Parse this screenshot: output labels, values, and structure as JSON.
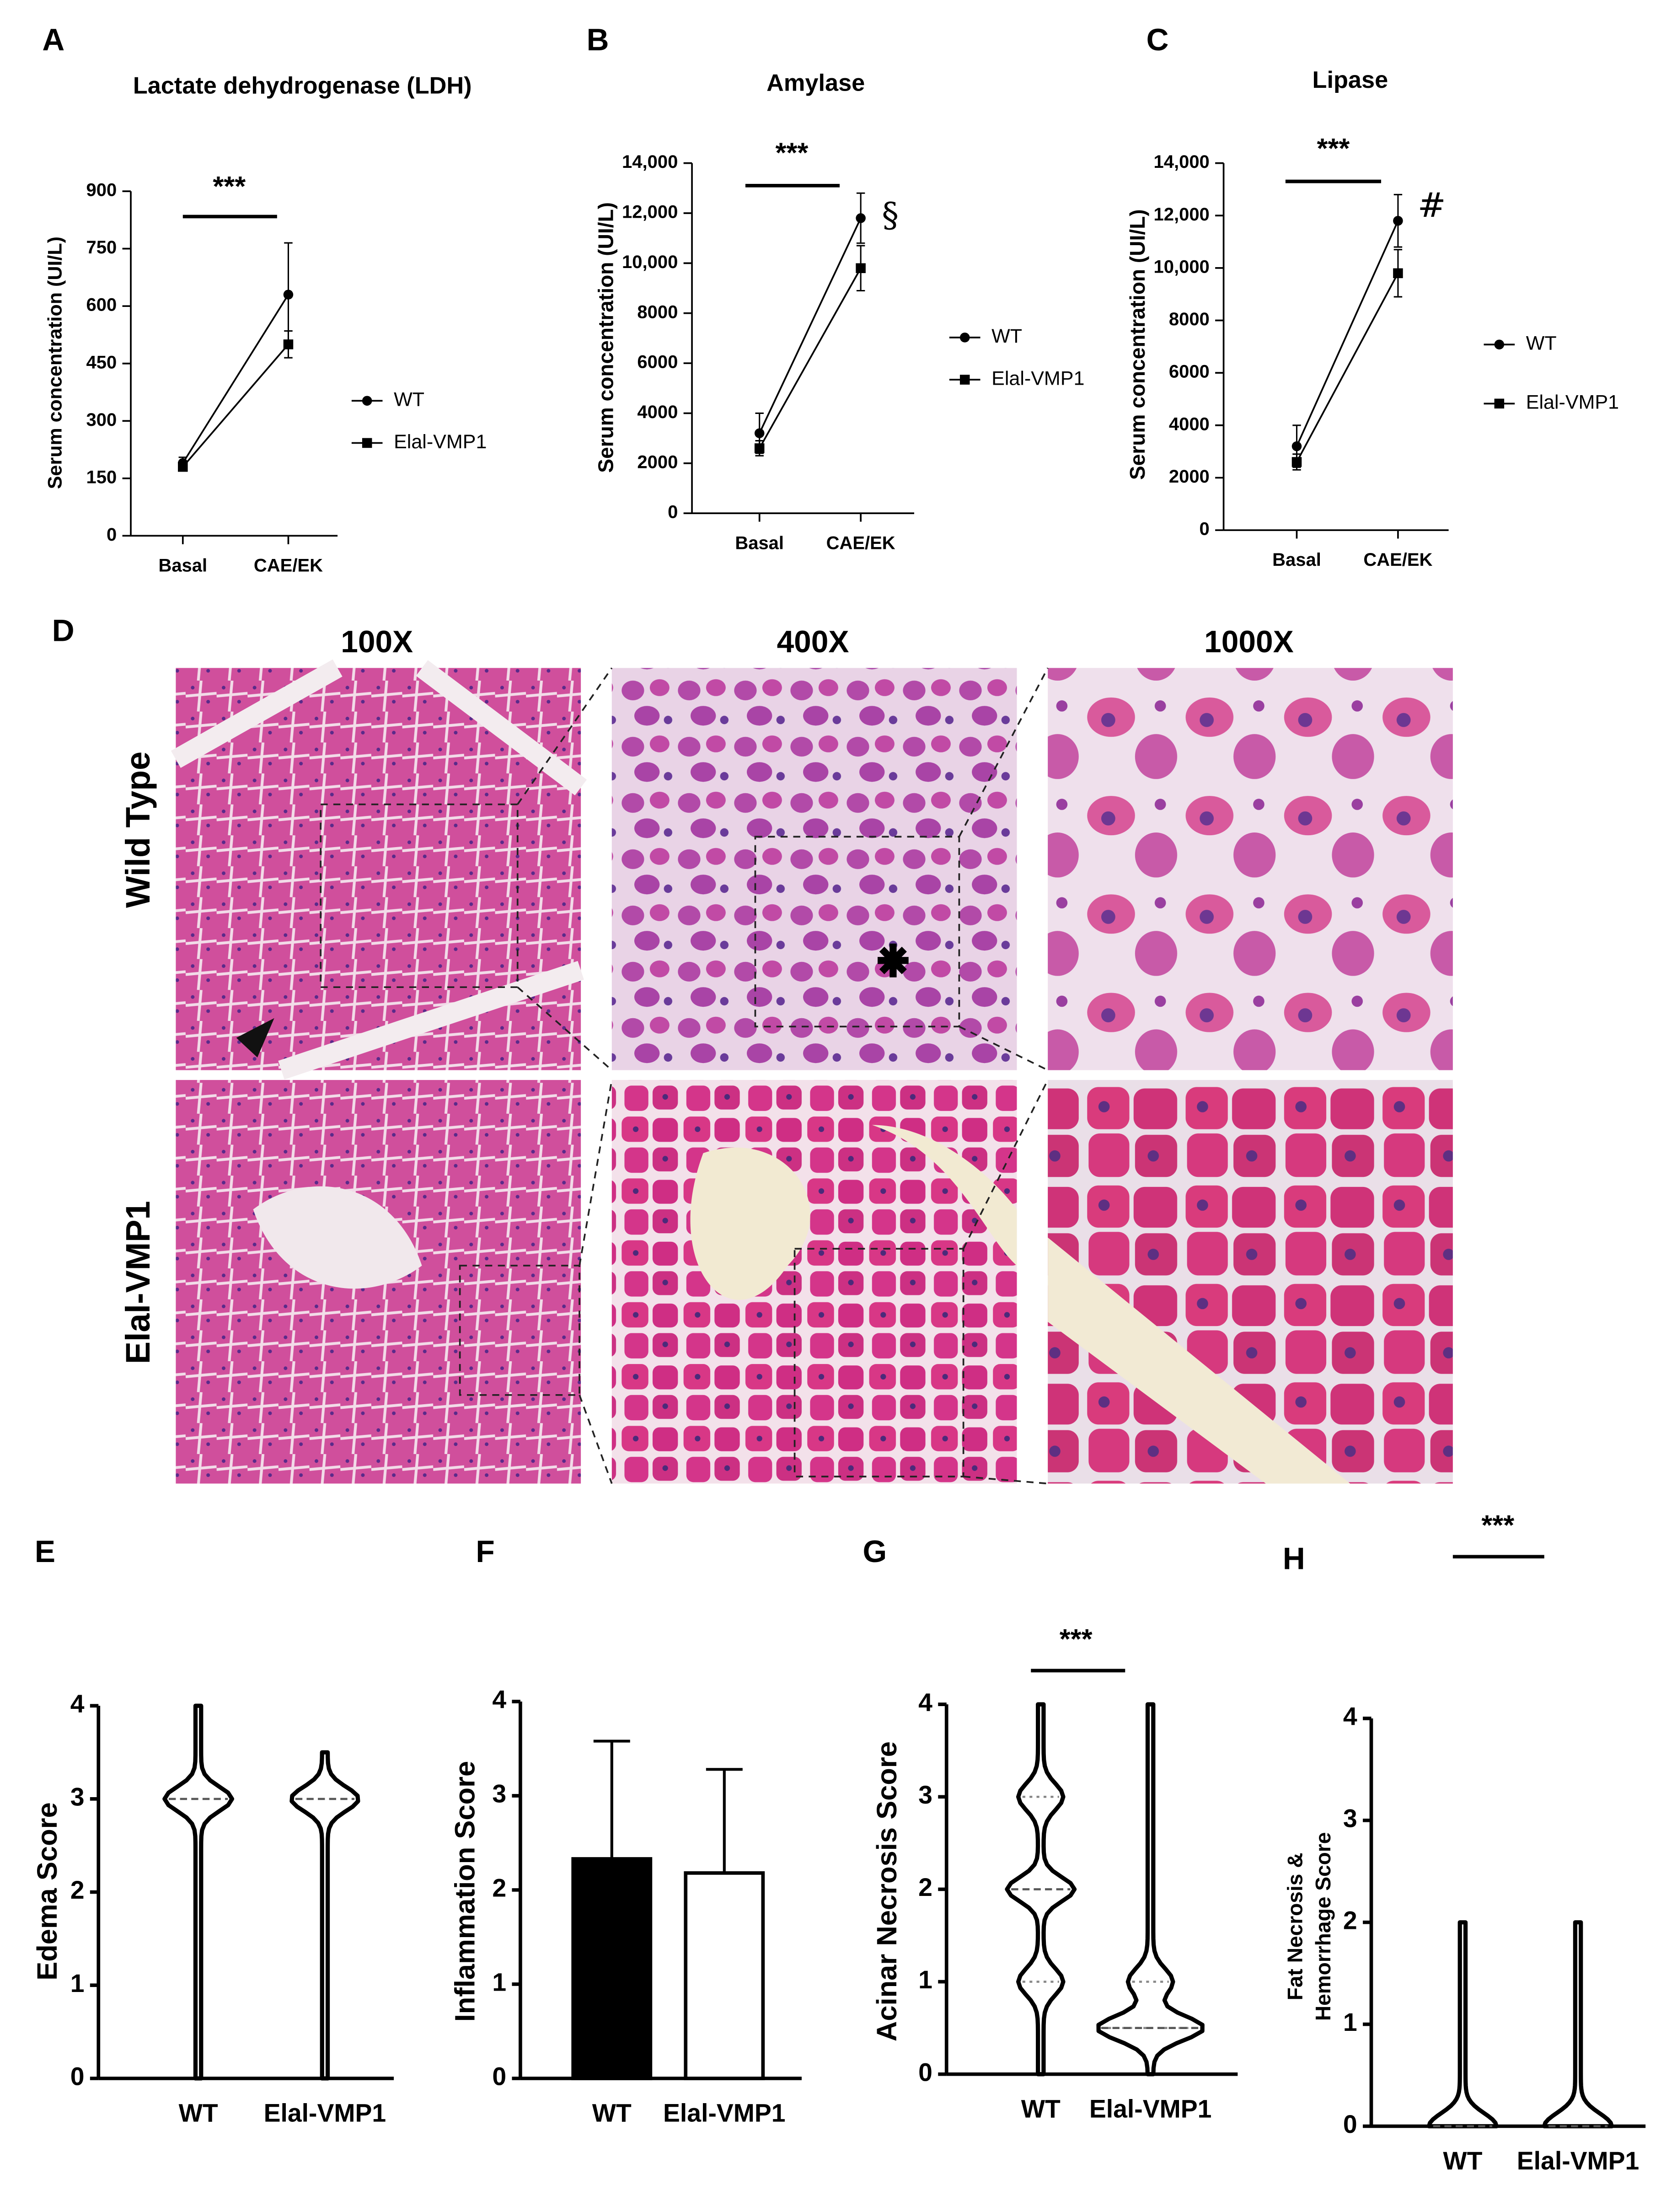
{
  "chart_data": [
    {
      "type": "line",
      "letter": "A",
      "title": "Lactate dehydrogenase (LDH)",
      "ylabel": "Serum concentration (UI/L)",
      "categories": [
        "Basal",
        "CAE/EK"
      ],
      "series": [
        {
          "name": "WT",
          "marker": "circle",
          "color": "#000000",
          "values": [
            190,
            630
          ],
          "errors": [
            15,
            135
          ]
        },
        {
          "name": "Elal-VMP1",
          "marker": "square",
          "color": "#000000",
          "values": [
            180,
            500
          ],
          "errors": [
            10,
            35
          ]
        }
      ],
      "ylim": [
        0,
        900
      ],
      "yticks": [
        0,
        150,
        300,
        450,
        600,
        750,
        900
      ],
      "annotations": [
        "***"
      ]
    },
    {
      "type": "line",
      "letter": "B",
      "title": "Amylase",
      "ylabel": "Serum concentration (UI/L)",
      "categories": [
        "Basal",
        "CAE/EK"
      ],
      "series": [
        {
          "name": "WT",
          "marker": "circle",
          "color": "#000000",
          "values": [
            3200,
            11800
          ],
          "errors": [
            800,
            1000
          ]
        },
        {
          "name": "Elal-VMP1",
          "marker": "square",
          "color": "#000000",
          "values": [
            2600,
            9800
          ],
          "errors": [
            300,
            900
          ]
        }
      ],
      "ylim": [
        0,
        14000
      ],
      "yticks": [
        0,
        2000,
        4000,
        6000,
        8000,
        {
          "value": 10000,
          "label": "10,000"
        },
        {
          "value": 12000,
          "label": "12,000"
        },
        {
          "value": 14000,
          "label": "14,000"
        }
      ],
      "annotations": [
        "***",
        "§"
      ]
    },
    {
      "type": "line",
      "letter": "C",
      "title": "Lipase",
      "ylabel": "Serum concentration (UI/L)",
      "categories": [
        "Basal",
        "CAE/EK"
      ],
      "series": [
        {
          "name": "WT",
          "marker": "circle",
          "color": "#000000",
          "values": [
            3200,
            11800
          ],
          "errors": [
            800,
            1000
          ]
        },
        {
          "name": "Elal-VMP1",
          "marker": "square",
          "color": "#000000",
          "values": [
            2600,
            9800
          ],
          "errors": [
            300,
            900
          ]
        }
      ],
      "ylim": [
        0,
        14000
      ],
      "yticks": [
        0,
        2000,
        4000,
        6000,
        8000,
        {
          "value": 10000,
          "label": "10,000"
        },
        {
          "value": 12000,
          "label": "12,000"
        },
        {
          "value": 14000,
          "label": "14,000"
        }
      ],
      "annotations": [
        "***",
        "#"
      ]
    },
    {
      "type": "violin",
      "letter": "E",
      "ylabel": "Edema Score",
      "categories": [
        "WT",
        "Elal-VMP1"
      ],
      "medians": [
        3,
        3
      ],
      "min": [
        0,
        0
      ],
      "max": [
        4,
        3.5
      ],
      "ylim": [
        0,
        4
      ],
      "yticks": [
        0,
        1,
        2,
        3,
        4
      ]
    },
    {
      "type": "bar",
      "letter": "F",
      "ylabel": "Inflammation Score",
      "categories": [
        "WT",
        "Elal-VMP1"
      ],
      "values": [
        2.33,
        2.18
      ],
      "errors": [
        1.25,
        1.1
      ],
      "colors": [
        "#000000",
        "#ffffff"
      ],
      "ylim": [
        0,
        4
      ],
      "yticks": [
        0,
        1,
        2,
        3,
        4
      ]
    },
    {
      "type": "violin",
      "letter": "G",
      "ylabel": "Acinar Necrosis Score",
      "categories": [
        "WT",
        "Elal-VMP1"
      ],
      "medians": [
        2,
        0.5
      ],
      "quartiles": [
        [
          1,
          3
        ],
        [
          0.5,
          1
        ]
      ],
      "min": [
        0,
        0
      ],
      "max": [
        4,
        4
      ],
      "ylim": [
        0,
        4
      ],
      "yticks": [
        0,
        1,
        2,
        3,
        4
      ],
      "annotations": [
        "***"
      ]
    },
    {
      "type": "violin",
      "letter": "H",
      "ylabel": [
        "Fat Necrosis &",
        "Hemorrhage Score"
      ],
      "categories": [
        "WT",
        "Elal-VMP1"
      ],
      "medians": [
        0,
        0
      ],
      "min": [
        0,
        0
      ],
      "max": [
        2,
        2
      ],
      "ylim": [
        0,
        4
      ],
      "yticks": [
        0,
        1,
        2,
        3,
        4
      ],
      "annotations": [
        "***"
      ]
    }
  ],
  "figure_panel": {
    "letter": "D",
    "columns": [
      "100X",
      "400X",
      "1000X"
    ],
    "rows": [
      "Wild Type",
      "Elal-VMP1"
    ]
  }
}
